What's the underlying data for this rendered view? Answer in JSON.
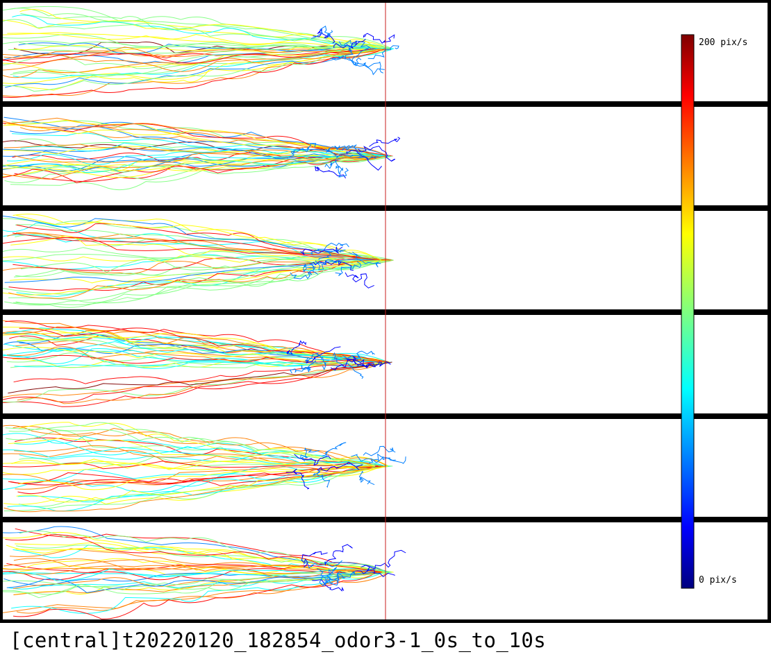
{
  "caption": "[central]t20220120_182854_odor3-1_0s_to_10s",
  "colorbar": {
    "max_label": "200 pix/s",
    "min_label": "0 pix/s",
    "max_value": 200,
    "min_value": 0,
    "unit": "pix/s",
    "colormap": "jet"
  },
  "arena": {
    "lane_count": 6,
    "border_color": "#000000",
    "background_color": "#ffffff",
    "target_line_color": "#c81e1e"
  },
  "colormap_stops": [
    "#00007f",
    "#0000ff",
    "#007fff",
    "#00ffff",
    "#7fff7f",
    "#ffff00",
    "#ff7f00",
    "#ff0000",
    "#7f0000"
  ]
}
